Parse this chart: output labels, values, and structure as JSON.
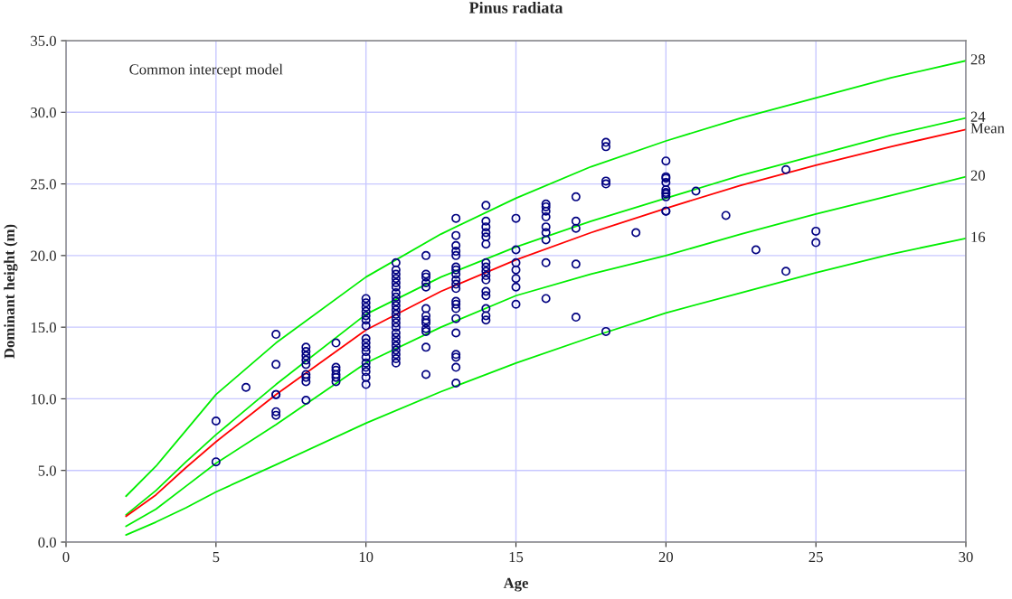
{
  "chart_data": {
    "type": "scatter",
    "title": "Pinus radiata",
    "xlabel": "Age",
    "ylabel": "Dominant height (m)",
    "annotations": [
      "Common intercept model"
    ],
    "xlim": [
      0,
      30
    ],
    "xticks": [
      0,
      5,
      10,
      15,
      20,
      25,
      30
    ],
    "ylim": [
      0,
      35
    ],
    "yticks": [
      {
        "value": 0,
        "label": "0.0"
      },
      {
        "value": 5,
        "label": "5.0"
      },
      {
        "value": 10,
        "label": "10.0"
      },
      {
        "value": 15,
        "label": "15.0"
      },
      {
        "value": 20,
        "label": "20.0"
      },
      {
        "value": 25,
        "label": "25.0"
      },
      {
        "value": 30,
        "label": "30.0"
      },
      {
        "value": 35,
        "label": "35.0"
      }
    ],
    "grid": true,
    "legend": false,
    "series": [
      {
        "marker": "circle",
        "color": "#000080",
        "x": [
          5,
          5,
          6,
          7,
          7,
          7,
          7,
          7,
          7,
          8,
          8,
          8,
          8,
          8,
          8,
          8,
          8,
          8,
          9,
          9,
          9,
          9,
          9,
          9,
          10,
          10,
          10,
          10,
          10,
          10,
          10,
          10,
          10,
          10,
          10,
          10,
          10,
          10,
          10,
          10,
          10,
          11,
          11,
          11,
          11,
          11,
          11,
          11,
          11,
          11,
          11,
          11,
          11,
          11,
          11,
          11,
          11,
          11,
          11,
          11,
          11,
          11,
          11,
          11,
          12,
          12,
          12,
          12,
          12,
          12,
          12,
          12,
          12,
          12,
          12,
          12,
          12,
          13,
          13,
          13,
          13,
          13,
          13,
          13,
          13,
          13,
          13,
          13,
          13,
          13,
          13,
          13,
          13,
          13,
          13,
          13,
          13,
          14,
          14,
          14,
          14,
          14,
          14,
          14,
          14,
          14,
          14,
          14,
          14,
          14,
          14,
          14,
          14,
          15,
          15,
          15,
          15,
          15,
          15,
          15,
          16,
          16,
          16,
          16,
          16,
          16,
          16,
          16,
          16,
          17,
          17,
          17,
          17,
          17,
          18,
          18,
          18,
          18,
          18,
          19,
          20,
          20,
          20,
          20,
          20,
          20,
          20,
          20,
          20,
          20,
          21,
          22,
          23,
          24,
          24,
          25,
          25
        ],
        "values": [
          8.45,
          5.6,
          10.8,
          14.5,
          12.4,
          10.3,
          10.3,
          9.1,
          8.85,
          13.6,
          13.3,
          13.0,
          12.7,
          12.4,
          11.7,
          11.5,
          11.2,
          9.9,
          13.9,
          12.2,
          12.0,
          11.7,
          11.5,
          11.2,
          17.0,
          16.7,
          16.4,
          16.1,
          15.8,
          15.5,
          15.1,
          14.2,
          13.9,
          13.6,
          13.3,
          12.9,
          12.5,
          12.2,
          11.9,
          11.5,
          11.0,
          19.5,
          19.0,
          18.7,
          18.4,
          18.1,
          17.8,
          17.4,
          17.1,
          16.8,
          16.5,
          16.2,
          15.9,
          15.6,
          15.3,
          15.0,
          14.6,
          14.3,
          14.0,
          13.7,
          13.4,
          13.1,
          12.8,
          12.5,
          20.0,
          18.7,
          18.5,
          18.1,
          17.8,
          16.3,
          15.8,
          15.5,
          15.3,
          14.9,
          14.7,
          13.6,
          11.7,
          22.6,
          21.4,
          20.7,
          20.3,
          20.0,
          19.2,
          19.0,
          18.7,
          18.3,
          18.0,
          17.7,
          16.8,
          16.6,
          16.3,
          15.6,
          14.6,
          13.1,
          12.9,
          12.2,
          11.1,
          23.5,
          22.4,
          22.0,
          21.6,
          21.3,
          20.8,
          19.5,
          19.2,
          18.9,
          18.6,
          18.3,
          17.5,
          17.2,
          16.3,
          15.8,
          15.5,
          22.6,
          20.4,
          19.5,
          19.0,
          18.4,
          17.8,
          16.6,
          23.6,
          23.4,
          23.1,
          22.7,
          22.0,
          21.6,
          21.1,
          19.5,
          17.0,
          24.1,
          22.4,
          21.9,
          19.4,
          15.7,
          27.9,
          27.6,
          25.2,
          25.0,
          14.7,
          21.6,
          26.6,
          25.5,
          25.4,
          25.1,
          24.6,
          24.4,
          24.3,
          24.1,
          23.1,
          23.1,
          24.5,
          22.8,
          20.4,
          26.0,
          18.9,
          21.7,
          20.9
        ]
      },
      {
        "type": "line",
        "name": "28",
        "color": "#00ee00",
        "marker": "none",
        "line_style": "solid",
        "x": [
          2,
          3,
          4,
          5,
          7,
          10,
          12.5,
          15,
          17.5,
          20,
          22.5,
          25,
          27.5,
          30
        ],
        "values": [
          3.2,
          5.3,
          7.8,
          10.3,
          13.9,
          18.5,
          21.5,
          24.0,
          26.2,
          28.0,
          29.6,
          31.0,
          32.4,
          33.6
        ]
      },
      {
        "type": "line",
        "name": "24",
        "color": "#00ee00",
        "marker": "none",
        "line_style": "solid",
        "x": [
          2,
          3,
          4,
          5,
          7,
          10,
          12.5,
          15,
          17.5,
          20,
          22.5,
          25,
          27.5,
          30
        ],
        "values": [
          1.9,
          3.6,
          5.6,
          7.5,
          11.0,
          15.9,
          18.5,
          20.6,
          22.4,
          24.0,
          25.6,
          27.0,
          28.4,
          29.6
        ]
      },
      {
        "type": "line",
        "name": "Mean",
        "color": "#ff0000",
        "marker": "none",
        "line_style": "solid",
        "x": [
          2,
          3,
          4,
          5,
          7,
          10,
          12.5,
          15,
          17.5,
          20,
          22.5,
          25,
          27.5,
          30
        ],
        "values": [
          1.8,
          3.3,
          5.2,
          7.0,
          10.3,
          14.8,
          17.5,
          19.7,
          21.6,
          23.3,
          24.9,
          26.3,
          27.6,
          28.8
        ]
      },
      {
        "type": "line",
        "name": "20",
        "color": "#00ee00",
        "marker": "none",
        "line_style": "solid",
        "x": [
          2,
          3,
          4,
          5,
          7,
          10,
          12.5,
          15,
          17.5,
          20,
          22.5,
          25,
          27.5,
          30
        ],
        "values": [
          1.1,
          2.3,
          3.9,
          5.5,
          8.2,
          12.5,
          15.0,
          17.2,
          18.7,
          20.0,
          21.5,
          22.9,
          24.2,
          25.5
        ]
      },
      {
        "type": "line",
        "name": "16",
        "color": "#00ee00",
        "marker": "none",
        "line_style": "solid",
        "x": [
          2,
          3,
          4,
          5,
          7,
          10,
          12.5,
          15,
          17.5,
          20,
          22.5,
          25,
          27.5,
          30
        ],
        "values": [
          0.5,
          1.4,
          2.4,
          3.5,
          5.4,
          8.3,
          10.5,
          12.5,
          14.3,
          16.0,
          17.4,
          18.8,
          20.1,
          21.2
        ]
      }
    ]
  }
}
